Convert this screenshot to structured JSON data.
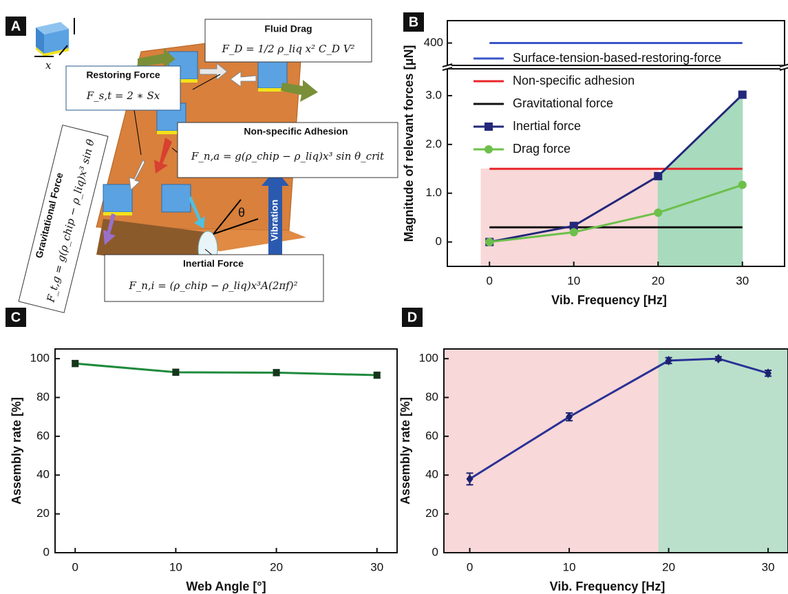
{
  "panels": [
    "A",
    "B",
    "C",
    "D"
  ],
  "diagram": {
    "size_label": "x",
    "angle_label": "θ",
    "vibration": "Vibration",
    "forces": [
      {
        "name": "Fluid Drag",
        "equation": "F_D = 1/2 ρ_liq x² C_D V²"
      },
      {
        "name": "Restoring Force",
        "equation": "F_s,t = 2 ∗ Sx"
      },
      {
        "name": "Non-specific Adhesion",
        "equation": "F_n,a = g(ρ_chip − ρ_liq)x³ sin θ_crit"
      },
      {
        "name": "Gravitational Force",
        "equation": "F_t,g = g(ρ_chip − ρ_liq)x³ sin θ"
      },
      {
        "name": "Inertial Force",
        "equation": "F_n,i = (ρ_chip − ρ_liq)x³A(2πf)²"
      }
    ]
  },
  "chart_data": [
    {
      "type": "line",
      "xlabel": "Vib. Frequency [Hz]",
      "ylabel": "Magnitude of relevant forces [μN]",
      "x": [
        0,
        10,
        20,
        30
      ],
      "xlim": [
        -5,
        35
      ],
      "xticks": [
        0,
        10,
        20,
        30
      ],
      "ylim": [
        -0.5,
        3.55
      ],
      "yticks": [
        0,
        {
          "value": 1,
          "label": "1.0"
        },
        {
          "value": 2,
          "label": "2.0"
        },
        {
          "value": 3,
          "label": "3.0"
        }
      ],
      "upper": {
        "ylim": [
          380,
          420
        ],
        "yticks": [
          400
        ]
      },
      "legend": "upper left",
      "regions": [
        {
          "x": [
            -1,
            20
          ],
          "top": [
            1.5,
            1.5
          ],
          "color": "#f8d4d4"
        },
        {
          "x": [
            20,
            30
          ],
          "top": [
            1.35,
            3.02
          ],
          "color": "#9fd6b6"
        }
      ],
      "series": [
        {
          "name": "Surface-tension-based-restoring-force",
          "color": "#3a55c8",
          "marker": "none",
          "axis": "upper",
          "values": [
            400,
            400,
            400,
            400
          ]
        },
        {
          "name": "Non-specific adhesion",
          "color": "#e8262a",
          "marker": "none",
          "values": [
            1.5,
            1.5,
            1.5,
            1.5
          ]
        },
        {
          "name": "Gravitational force",
          "color": "#111111",
          "marker": "none",
          "values": [
            0.3,
            0.3,
            0.3,
            0.3
          ]
        },
        {
          "name": "Inertial force",
          "color": "#23287a",
          "marker": "square",
          "values": [
            0,
            0.33,
            1.35,
            3.02
          ]
        },
        {
          "name": "Drag force",
          "color": "#6cc04a",
          "marker": "circle",
          "values": [
            0,
            0.2,
            0.6,
            1.17
          ]
        }
      ]
    },
    {
      "type": "line",
      "xlabel": "Web Angle [°]",
      "ylabel": "Assembly rate [%]",
      "x": [
        0,
        10,
        20,
        30
      ],
      "xlim": [
        -2,
        32
      ],
      "xticks": [
        0,
        10,
        20,
        30
      ],
      "ylim": [
        0,
        105
      ],
      "yticks": [
        0,
        20,
        40,
        60,
        80,
        100
      ],
      "series": [
        {
          "color": "#1e8a3c",
          "marker": "square",
          "marker_color": "#16361c",
          "values": [
            97.5,
            93,
            92.8,
            91.5
          ],
          "errors": [
            1.5,
            1.5,
            1.5,
            1.5
          ]
        }
      ]
    },
    {
      "type": "line",
      "xlabel": "Vib. Frequency [Hz]",
      "ylabel": "Assembly rate [%]",
      "x": [
        0,
        10,
        20,
        25,
        30
      ],
      "xlim": [
        -2.6,
        32
      ],
      "xticks": [
        0,
        10,
        20,
        30
      ],
      "ylim": [
        0,
        105
      ],
      "yticks": [
        0,
        20,
        40,
        60,
        80,
        100
      ],
      "regions": [
        {
          "x": [
            -2.6,
            19
          ],
          "top": [
            105,
            105
          ],
          "color": "#f8d4d4"
        },
        {
          "x": [
            19,
            32
          ],
          "top": [
            105,
            105
          ],
          "color": "#b3ddc6"
        }
      ],
      "series": [
        {
          "color": "#2a3196",
          "marker": "diamond",
          "marker_color": "#1c2270",
          "values": [
            38,
            70,
            99,
            100,
            92.5
          ],
          "errors": [
            3,
            2,
            1.5,
            1,
            1.5
          ]
        }
      ]
    }
  ]
}
